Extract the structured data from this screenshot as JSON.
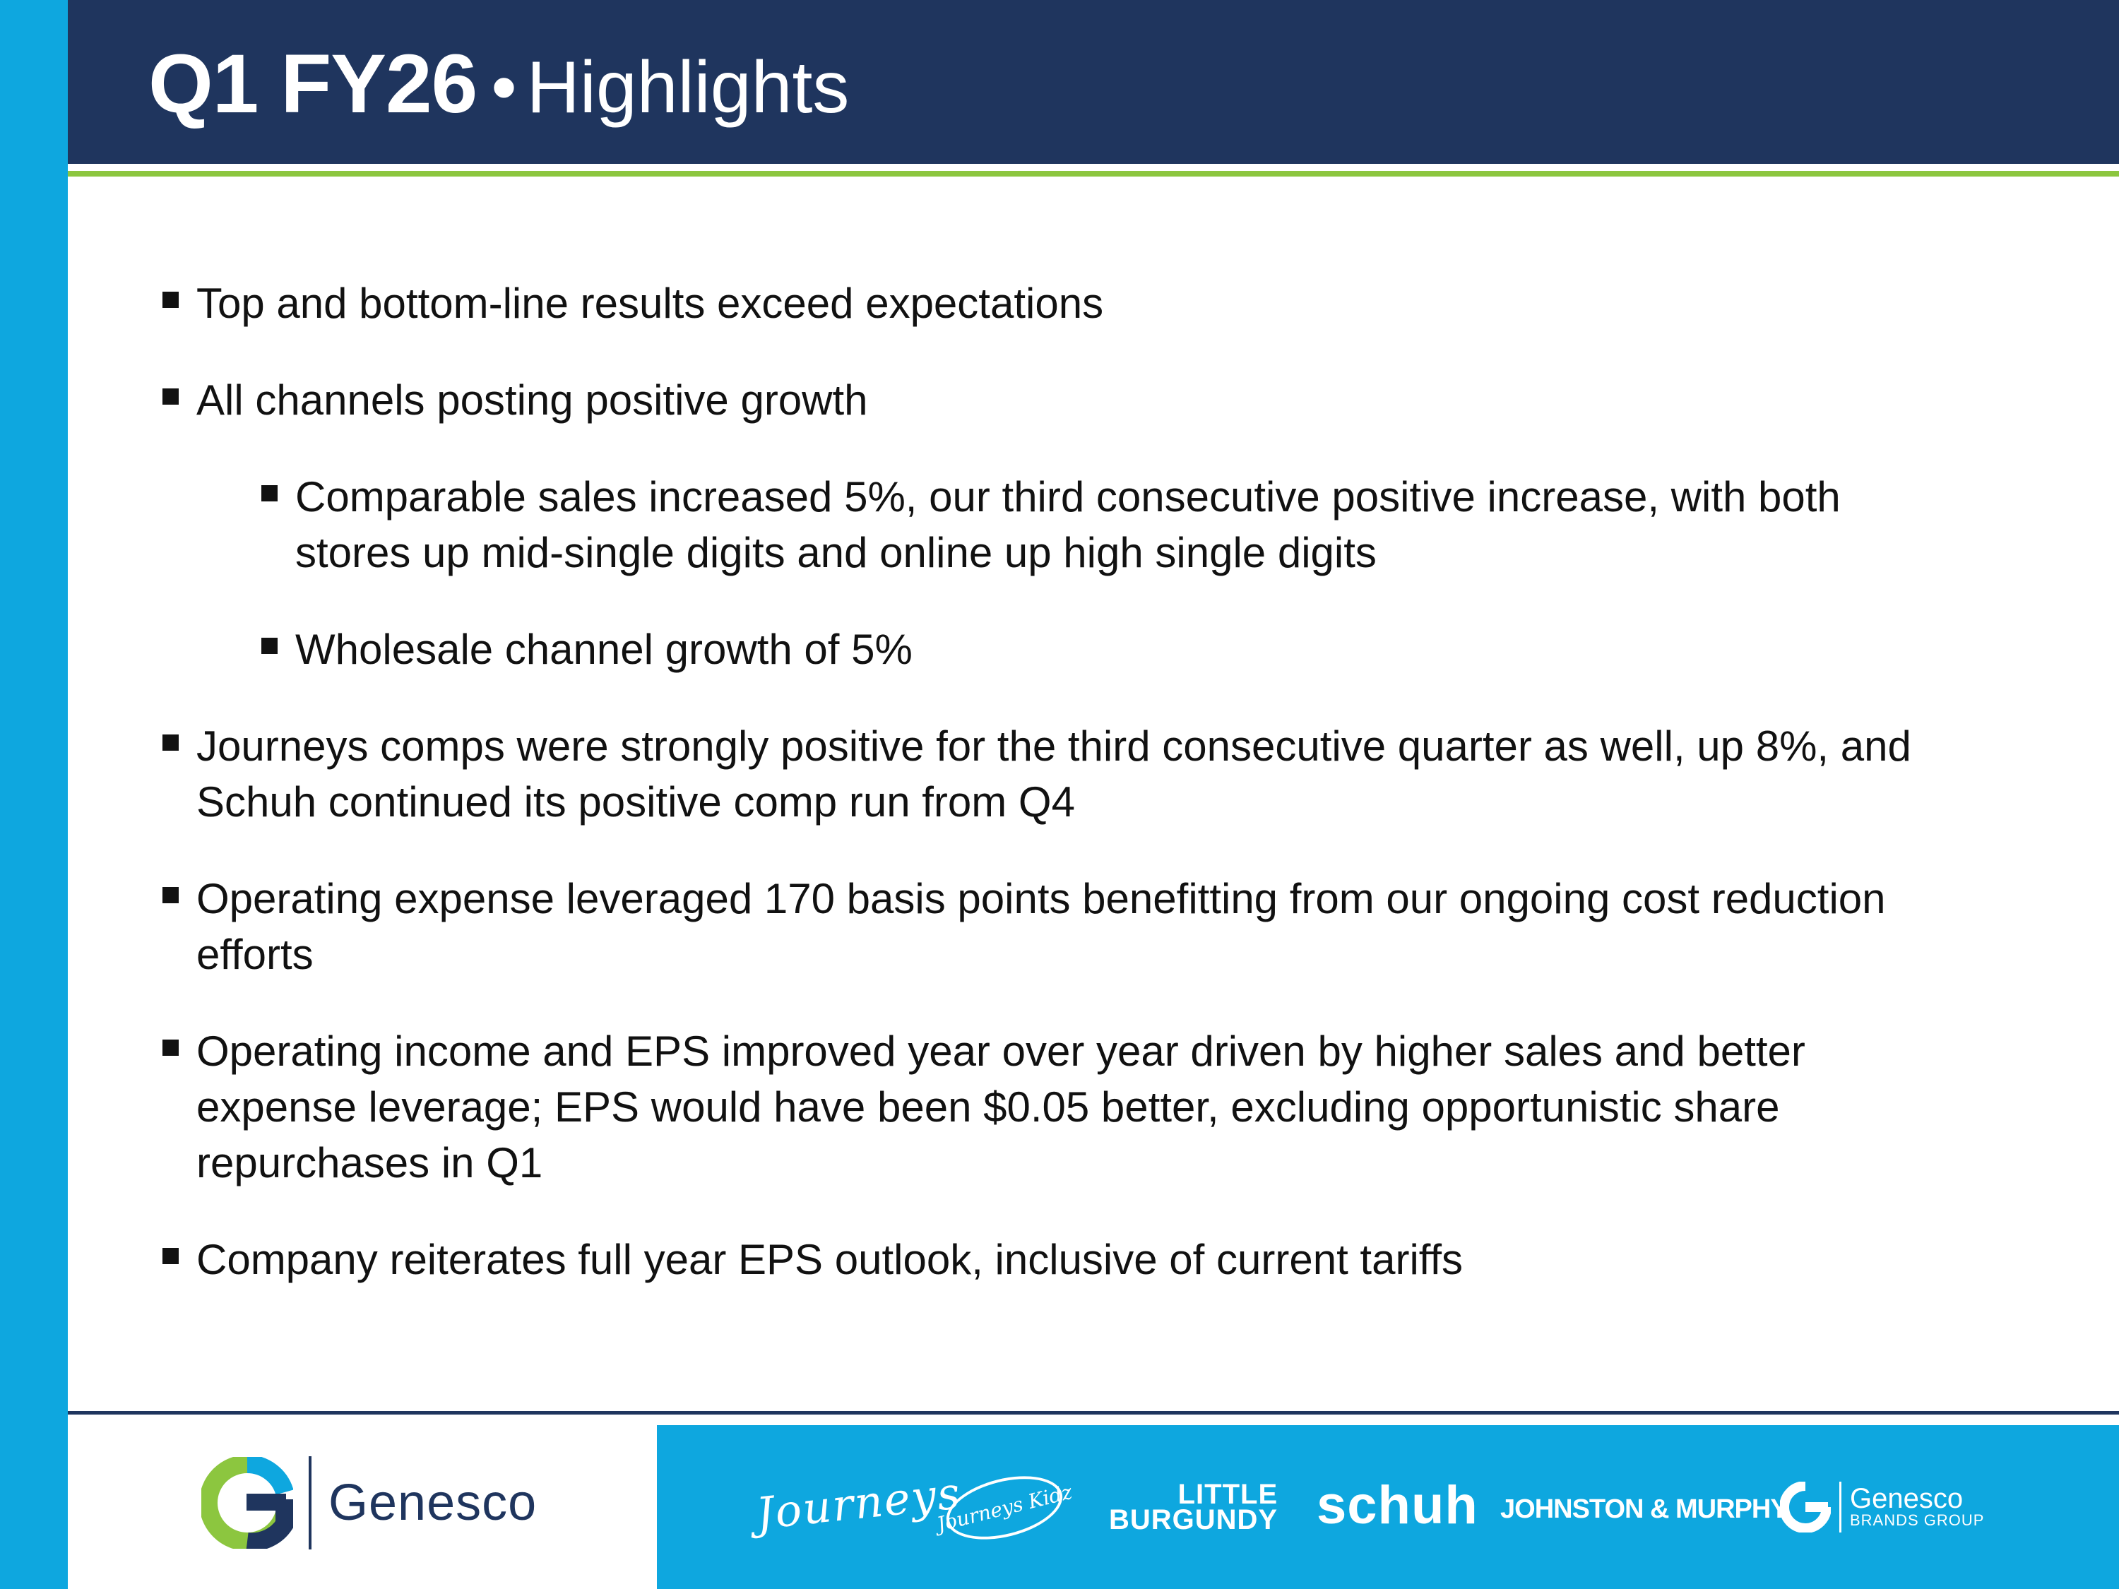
{
  "slide": {
    "title_bold": "Q1 FY26",
    "title_sep": "•",
    "title_rest": "Highlights"
  },
  "bullets": [
    {
      "level": 1,
      "text": "Top and bottom-line results exceed expectations"
    },
    {
      "level": 1,
      "text": "All channels posting positive growth"
    },
    {
      "level": 2,
      "text": "Comparable sales increased 5%, our third consecutive positive increase, with both stores up mid-single digits and online up high single digits"
    },
    {
      "level": 2,
      "text": "Wholesale channel growth of 5%"
    },
    {
      "level": 1,
      "text": "Journeys comps were strongly positive for the third consecutive quarter as well, up 8%, and Schuh continued its positive comp run from Q4"
    },
    {
      "level": 1,
      "text": "Operating expense leveraged 170 basis points benefitting from our ongoing cost reduction efforts"
    },
    {
      "level": 1,
      "text": "Operating income and EPS improved year over year driven by higher sales and better expense leverage; EPS would have been $0.05 better, excluding opportunistic share repurchases in Q1"
    },
    {
      "level": 1,
      "text": "Company reiterates full year EPS outlook, inclusive of current tariffs"
    }
  ],
  "footer": {
    "company_name": "Genesco",
    "brands": {
      "journeys": "Journeys",
      "journeys_kidz": "Journeys Kidz",
      "little_burgundy_line1": "LITTLE",
      "little_burgundy_line2": "BURGUNDY",
      "schuh": "schuh",
      "johnston_murphy": "JOHNSTON & MURPHY.",
      "gbg_line1": "Genesco",
      "gbg_line2": "BRANDS GROUP"
    }
  },
  "colors": {
    "navy": "#1f355e",
    "cyan": "#0ea7df",
    "green": "#8cc63f"
  },
  "icons": [
    "genesco-g-logo-icon",
    "gbg-g-logo-icon",
    "bullet-square-icon"
  ]
}
